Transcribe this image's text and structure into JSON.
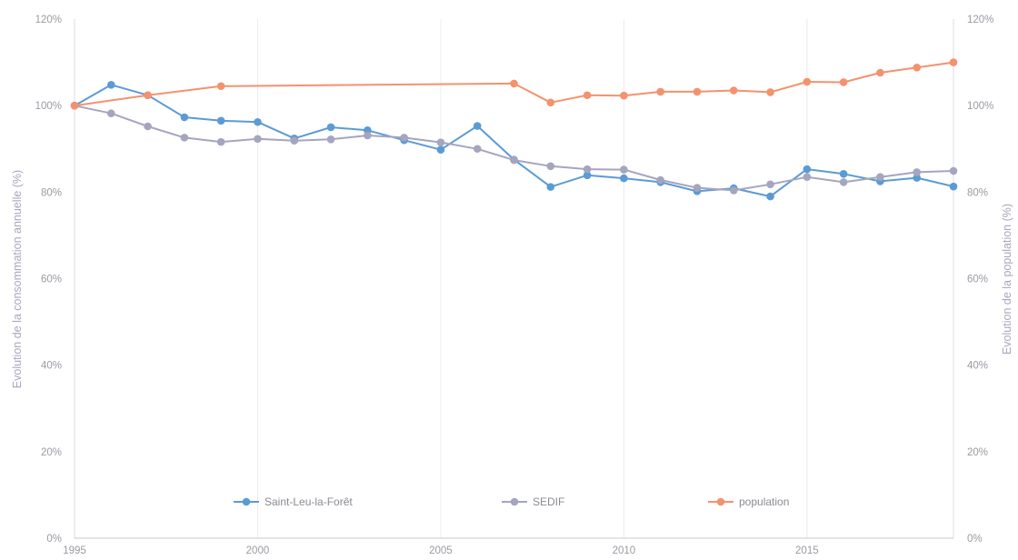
{
  "chart_data": {
    "type": "line",
    "x_ticks": [
      1995,
      2000,
      2005,
      2010,
      2015
    ],
    "xlim": [
      1995,
      2019
    ],
    "ylim": [
      0,
      120
    ],
    "y_ticks": [
      "0%",
      "20%",
      "40%",
      "60%",
      "80%",
      "100%",
      "120%"
    ],
    "y_tick_values": [
      0,
      20,
      40,
      60,
      80,
      100,
      120
    ],
    "right_y_ticks": [
      "0%",
      "20%",
      "40%",
      "60%",
      "80%",
      "100%",
      "120%"
    ],
    "ylabel": "Evolution de la consommation annuelle (%)",
    "ylabel_right": "Evolution de la population (%)",
    "grid": "vertical",
    "legend_position": "bottom",
    "series": [
      {
        "name": "Saint-Leu-la-Forêt",
        "color": "#5b9bd5",
        "x": [
          1995,
          1996,
          1997,
          1998,
          1999,
          2000,
          2001,
          2002,
          2003,
          2004,
          2005,
          2006,
          2007,
          2008,
          2009,
          2010,
          2011,
          2012,
          2013,
          2014,
          2015,
          2016,
          2017,
          2018,
          2019
        ],
        "y": [
          100,
          104.8,
          102.4,
          97.3,
          96.5,
          96.2,
          92.4,
          95,
          94.3,
          92,
          89.8,
          95.3,
          87.5,
          81.2,
          83.9,
          83.2,
          82.3,
          80.2,
          80.9,
          79,
          85.3,
          84.2,
          82.5,
          83.3,
          81.3
        ]
      },
      {
        "name": "SEDIF",
        "color": "#a5a5bf",
        "x": [
          1995,
          1996,
          1997,
          1998,
          1999,
          2000,
          2001,
          2002,
          2003,
          2004,
          2005,
          2006,
          2007,
          2008,
          2009,
          2010,
          2011,
          2012,
          2013,
          2014,
          2015,
          2016,
          2017,
          2018,
          2019
        ],
        "y": [
          100,
          98.2,
          95.2,
          92.6,
          91.6,
          92.3,
          91.9,
          92.2,
          93.1,
          92.6,
          91.5,
          90,
          87.4,
          86,
          85.3,
          85.2,
          82.8,
          81,
          80.4,
          81.8,
          83.5,
          82.3,
          83.5,
          84.6,
          84.9
        ]
      },
      {
        "name": "population",
        "color": "#f4926e",
        "x": [
          1995,
          1997,
          1999,
          2007,
          2008,
          2009,
          2010,
          2011,
          2012,
          2013,
          2014,
          2015,
          2016,
          2017,
          2018,
          2019
        ],
        "y": [
          100,
          102.4,
          104.5,
          105.1,
          100.7,
          102.4,
          102.3,
          103.2,
          103.2,
          103.5,
          103.1,
          105.5,
          105.4,
          107.6,
          108.8,
          110
        ]
      }
    ]
  }
}
